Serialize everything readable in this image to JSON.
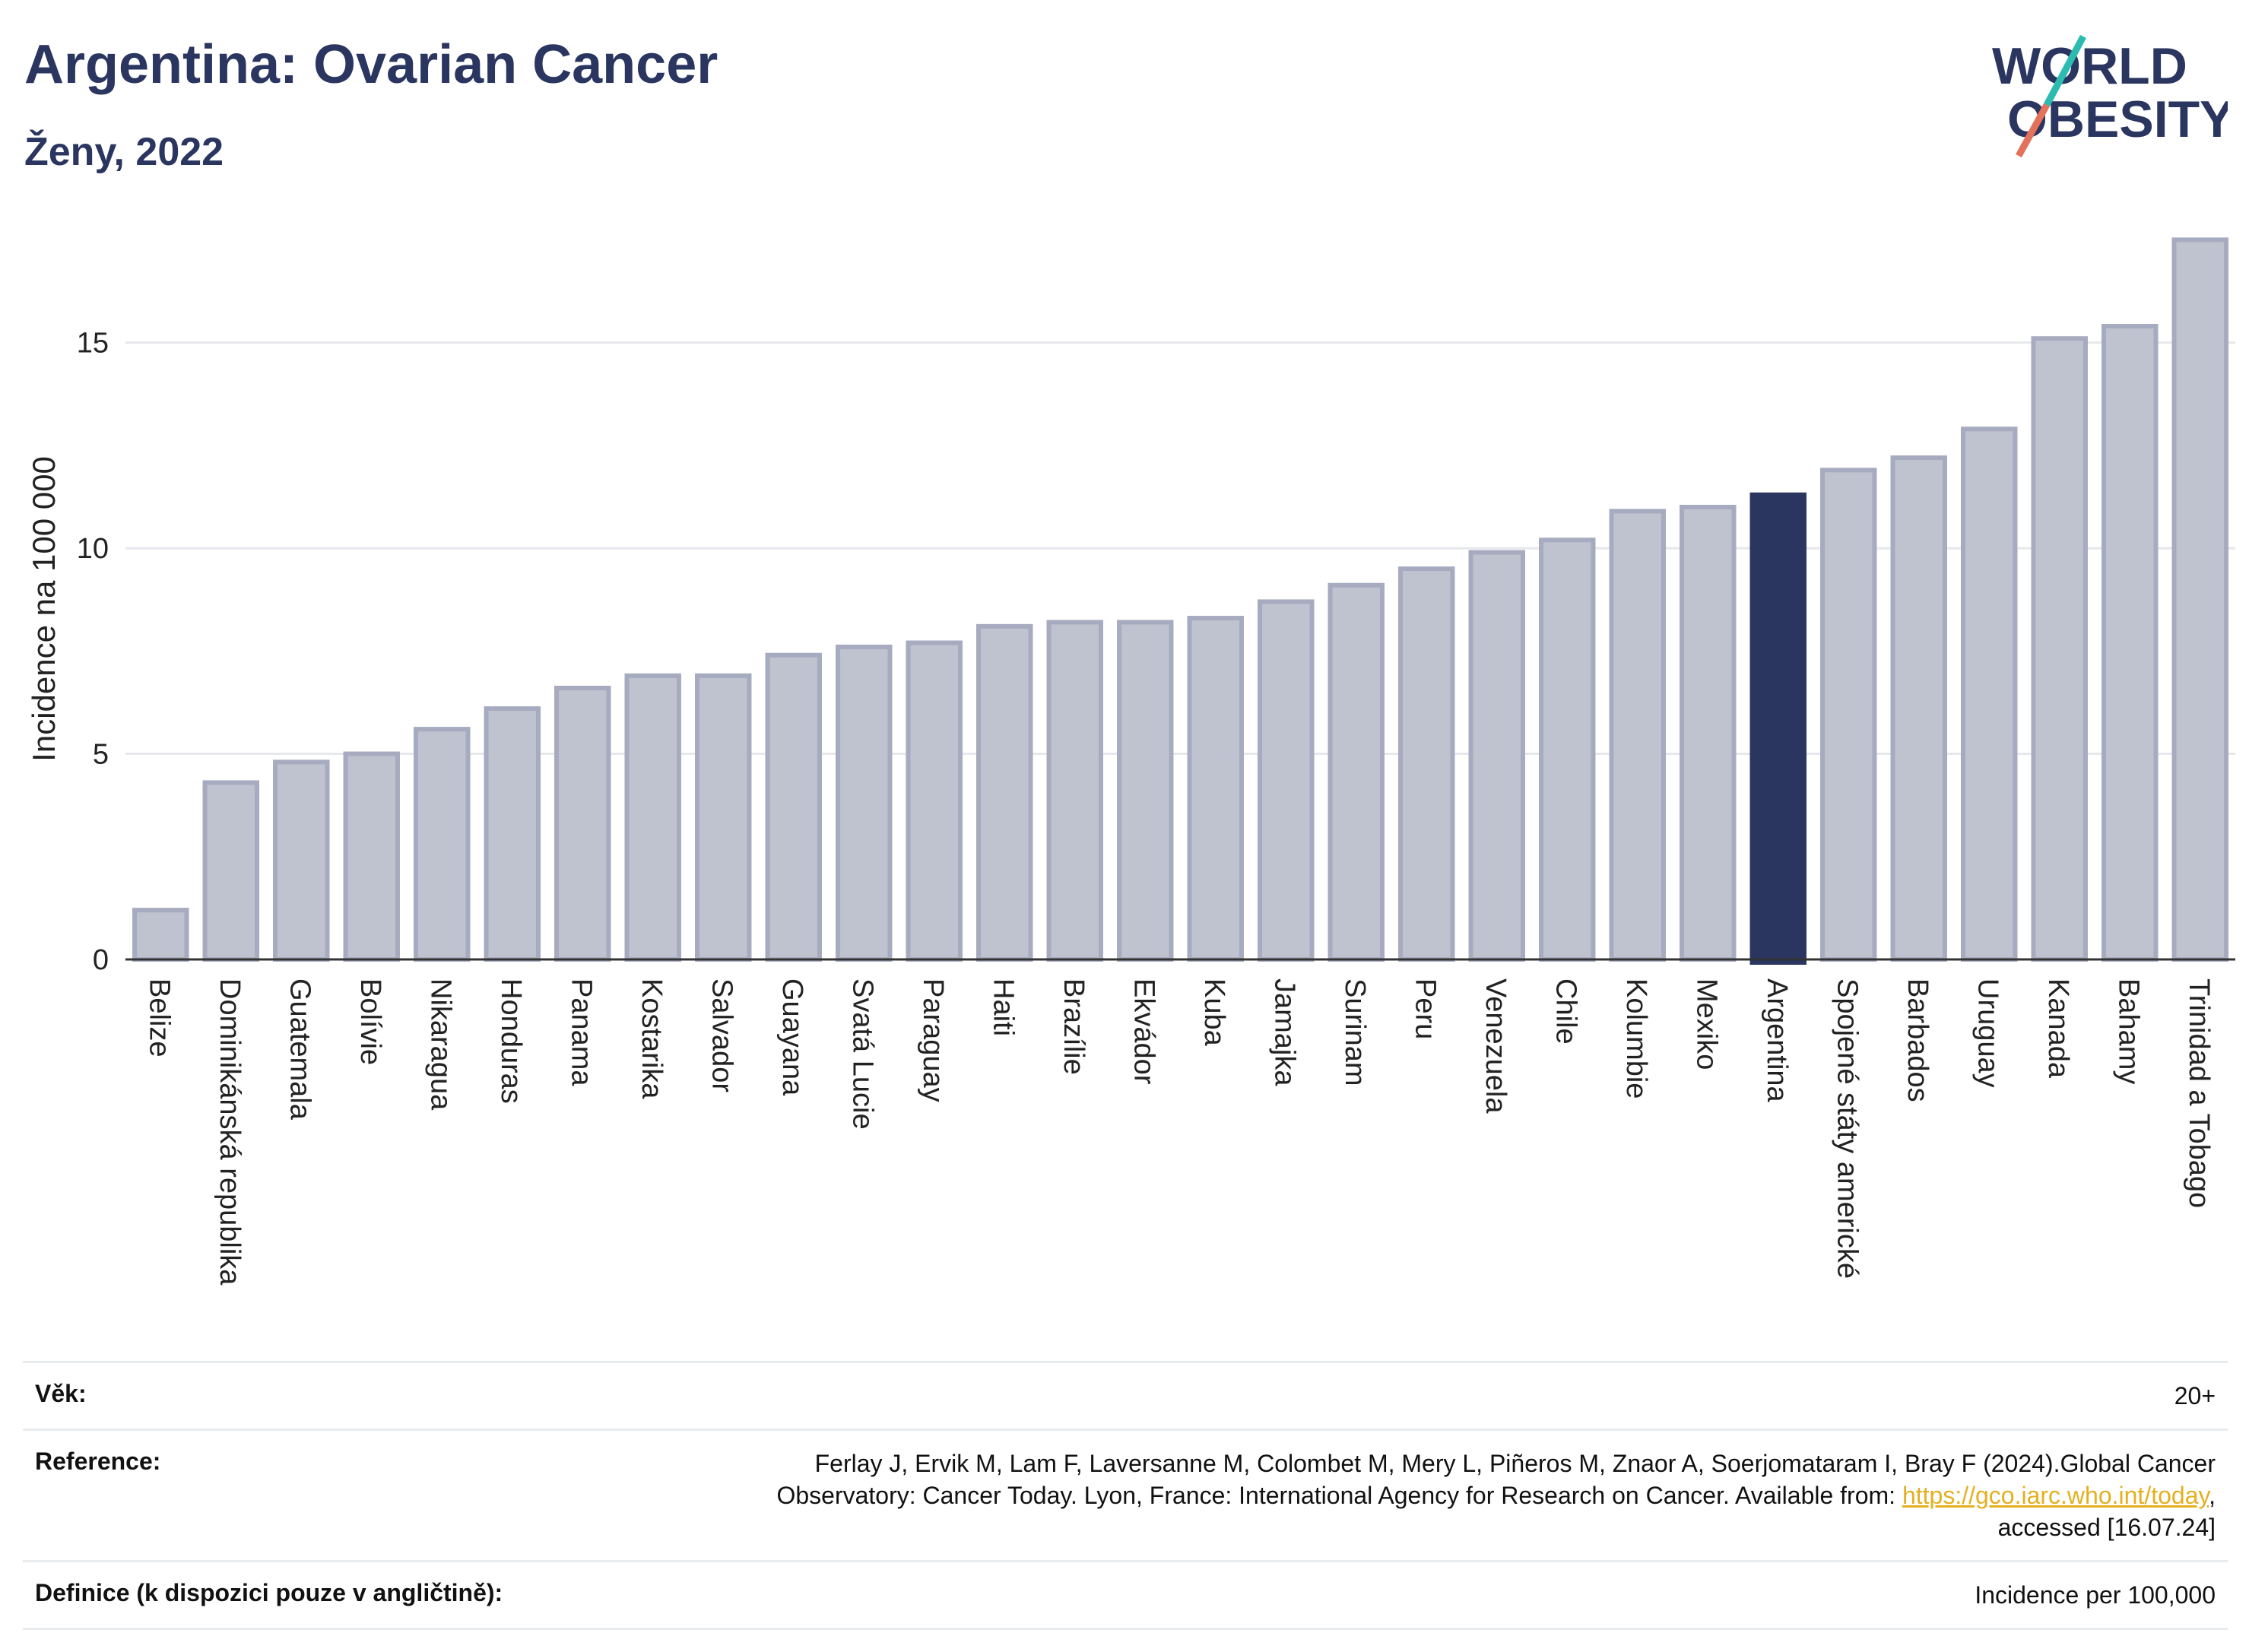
{
  "header": {
    "title": "Argentina: Ovarian Cancer",
    "subtitle": "Ženy, 2022",
    "logo_line1": "WORLD",
    "logo_line2": "OBESITY"
  },
  "colors": {
    "bar": "#bfc3d0",
    "bar_border": "#a6abbf",
    "highlight": "#2a3560",
    "title": "#2a3560",
    "logo_teal": "#2bbbb0",
    "logo_red": "#e2725b"
  },
  "chart_data": {
    "type": "bar",
    "ylabel": "Incidence na 100 000",
    "ylim": [
      0,
      17.6
    ],
    "yticks": [
      0,
      5,
      10,
      15
    ],
    "grid": true,
    "highlight": "Argentina",
    "categories": [
      "Belize",
      "Dominikánská republika",
      "Guatemala",
      "Bolívie",
      "Nikaragua",
      "Honduras",
      "Panama",
      "Kostarika",
      "Salvador",
      "Guayana",
      "Svatá Lucie",
      "Paraguay",
      "Haiti",
      "Brazílie",
      "Ekvádor",
      "Kuba",
      "Jamajka",
      "Surinam",
      "Peru",
      "Venezuela",
      "Chile",
      "Kolumbie",
      "Mexiko",
      "Argentina",
      "Spojené státy americké",
      "Barbados",
      "Uruguay",
      "Kanada",
      "Bahamy",
      "Trinidad a Tobago"
    ],
    "values": [
      1.2,
      4.3,
      4.8,
      5.0,
      5.6,
      6.1,
      6.6,
      6.9,
      6.9,
      7.4,
      7.6,
      7.7,
      8.1,
      8.2,
      8.2,
      8.3,
      8.7,
      9.1,
      9.5,
      9.9,
      10.2,
      10.9,
      11.0,
      11.3,
      11.9,
      12.2,
      12.9,
      15.1,
      15.4,
      17.5
    ]
  },
  "meta": {
    "age_label": "Věk:",
    "age_value": "20+",
    "reference_label": "Reference:",
    "reference_text_1": "Ferlay J, Ervik M, Lam F, Laversanne M, Colombet M, Mery L, Piñeros M, Znaor A, Soerjomataram I, Bray F (2024).Global Cancer",
    "reference_text_2": "Observatory: Cancer Today. Lyon, France: International Agency for Research on Cancer. Available from: ",
    "reference_link": "https://gco.iarc.who.int/today",
    "reference_text_3": ",",
    "reference_text_4": "accessed [16.07.24]",
    "definition_label": "Definice (k dispozici pouze v angličtině):",
    "definition_value": "Incidence per 100,000"
  }
}
